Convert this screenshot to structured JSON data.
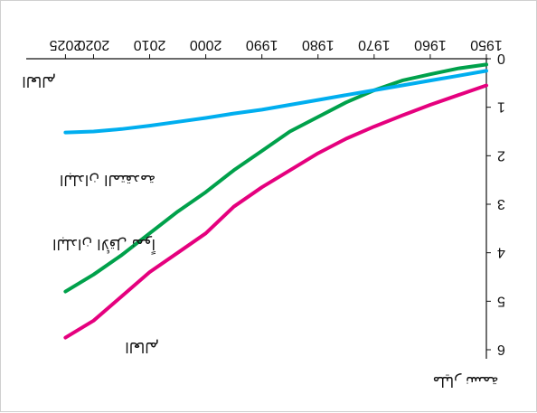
{
  "chart_data": {
    "type": "line",
    "orientation": "rotated 180 degrees",
    "x": [
      1950,
      1955,
      1960,
      1965,
      1970,
      1975,
      1980,
      1985,
      1990,
      1995,
      2000,
      2005,
      2010,
      2015,
      2020,
      2025
    ],
    "x_tick_labels": [
      "1950",
      "1960",
      "1970",
      "1980",
      "1990",
      "2000",
      "2010",
      "2020",
      "2025"
    ],
    "y_tick_labels": [
      "0",
      "1",
      "2",
      "3",
      "4",
      "5",
      "6"
    ],
    "xlim": [
      1950,
      2027
    ],
    "ylim": [
      0,
      6
    ],
    "series": [
      {
        "name": "العالم",
        "color": "#e5007e",
        "values": [
          0.55,
          0.75,
          0.95,
          1.17,
          1.4,
          1.65,
          1.95,
          2.3,
          2.65,
          3.05,
          3.6,
          4.0,
          4.4,
          4.9,
          5.4,
          5.75
        ]
      },
      {
        "name": "البلدان الأقل نمواً",
        "color": "#00a14b",
        "values": [
          0.12,
          0.2,
          0.32,
          0.45,
          0.65,
          0.9,
          1.2,
          1.5,
          1.9,
          2.3,
          2.75,
          3.15,
          3.6,
          4.05,
          4.45,
          4.8
        ]
      },
      {
        "name": "البلدان المتقدمة",
        "color": "#00aeef",
        "values": [
          0.25,
          0.35,
          0.45,
          0.55,
          0.65,
          0.75,
          0.85,
          0.95,
          1.05,
          1.13,
          1.22,
          1.3,
          1.38,
          1.45,
          1.5,
          1.52
        ]
      }
    ],
    "annotations": [
      "مليار نسمة",
      "العالم"
    ]
  }
}
